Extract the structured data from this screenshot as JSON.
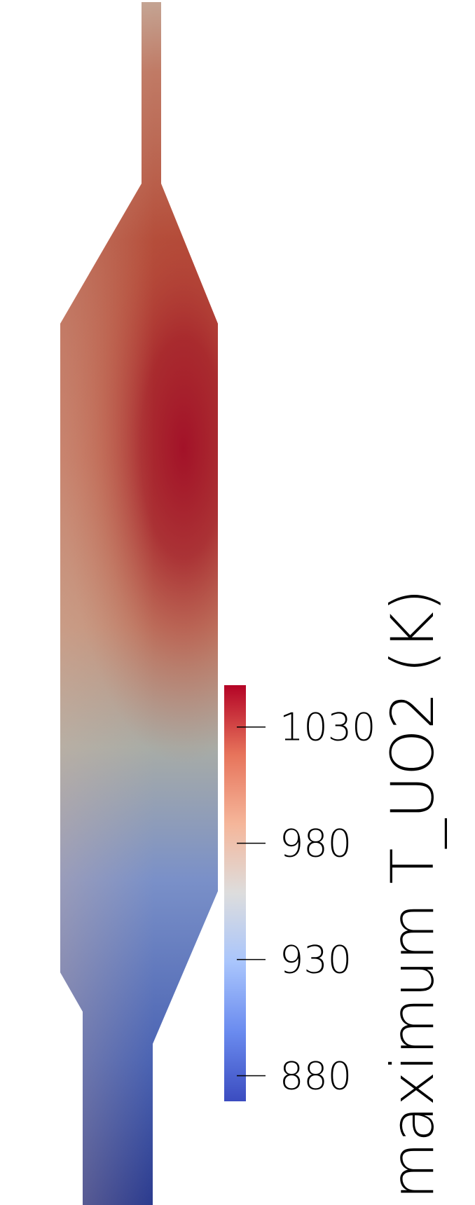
{
  "chart_data": {
    "type": "heatmap",
    "title": "",
    "colorbar": {
      "title": "maximum T_UO2 (K)",
      "range": [
        869,
        1048
      ],
      "ticks": [
        880,
        930,
        980,
        1030
      ],
      "tick_labels": [
        "880",
        "930",
        "980",
        "1030"
      ],
      "colormap": "cool-to-warm",
      "colormap_stops": [
        "#3b4cc0",
        "#6a8bef",
        "#a9c5fc",
        "#dddddd",
        "#f5b69a",
        "#e7745b",
        "#b40426"
      ],
      "orientation": "vertical"
    },
    "field": {
      "variable": "maximum T_UO2",
      "unit": "K",
      "min_color": "#2a3a8e",
      "max_color": "#a10d26"
    }
  }
}
